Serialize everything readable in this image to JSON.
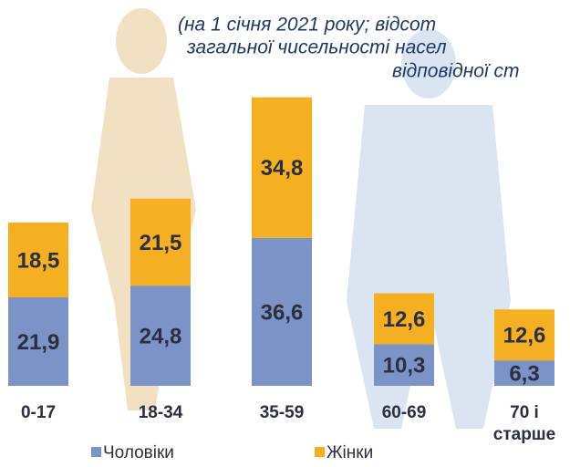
{
  "chart_data": {
    "type": "stacked-bar",
    "subtitle_lines": [
      "(на 1 січня 2021 року; відсот",
      "загальної чисельності насел",
      "відповідної ст"
    ],
    "categories": [
      "0-17",
      "18-34",
      "35-59",
      "60-69",
      "70 і старше"
    ],
    "series": [
      {
        "name": "Чоловіки",
        "color": "#7b93c6",
        "values": [
          21.9,
          24.8,
          36.6,
          10.3,
          6.3
        ],
        "value_labels": [
          "21,9",
          "24,8",
          "36,6",
          "10,3",
          "6,3"
        ]
      },
      {
        "name": "Жінки",
        "color": "#f5b021",
        "values": [
          18.5,
          21.5,
          34.8,
          12.6,
          12.6
        ],
        "value_labels": [
          "18,5",
          "21,5",
          "34,8",
          "12,6",
          "12,6"
        ]
      }
    ]
  }
}
